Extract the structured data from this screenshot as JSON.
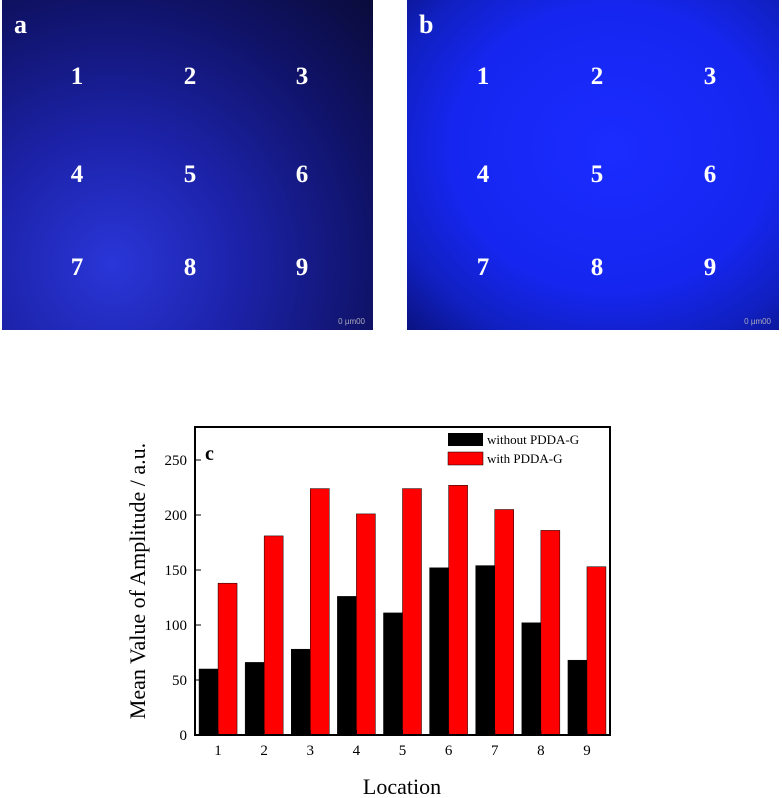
{
  "panels": [
    {
      "label": "a",
      "numbers": [
        "1",
        "2",
        "3",
        "4",
        "5",
        "6",
        "7",
        "8",
        "9"
      ],
      "scale": "0 µm00"
    },
    {
      "label": "b",
      "numbers": [
        "1",
        "2",
        "3",
        "4",
        "5",
        "6",
        "7",
        "8",
        "9"
      ],
      "scale": "0 µm00"
    }
  ],
  "chart_data": {
    "type": "bar",
    "panel_label": "c",
    "categories": [
      "1",
      "2",
      "3",
      "4",
      "5",
      "6",
      "7",
      "8",
      "9"
    ],
    "series": [
      {
        "name": "without PDDA-G",
        "color": "#000000",
        "values": [
          60,
          66,
          78,
          126,
          111,
          152,
          154,
          102,
          68
        ]
      },
      {
        "name": "with PDDA-G",
        "color": "#ff0000",
        "values": [
          138,
          181,
          224,
          201,
          224,
          227,
          205,
          186,
          153
        ]
      }
    ],
    "xlabel": "Location",
    "ylabel": "Mean Value of Amplitude / a.u.",
    "ylim": [
      0,
      280
    ],
    "yticks": [
      "0",
      "50",
      "100",
      "150",
      "200",
      "250"
    ],
    "legend": "top-right"
  }
}
